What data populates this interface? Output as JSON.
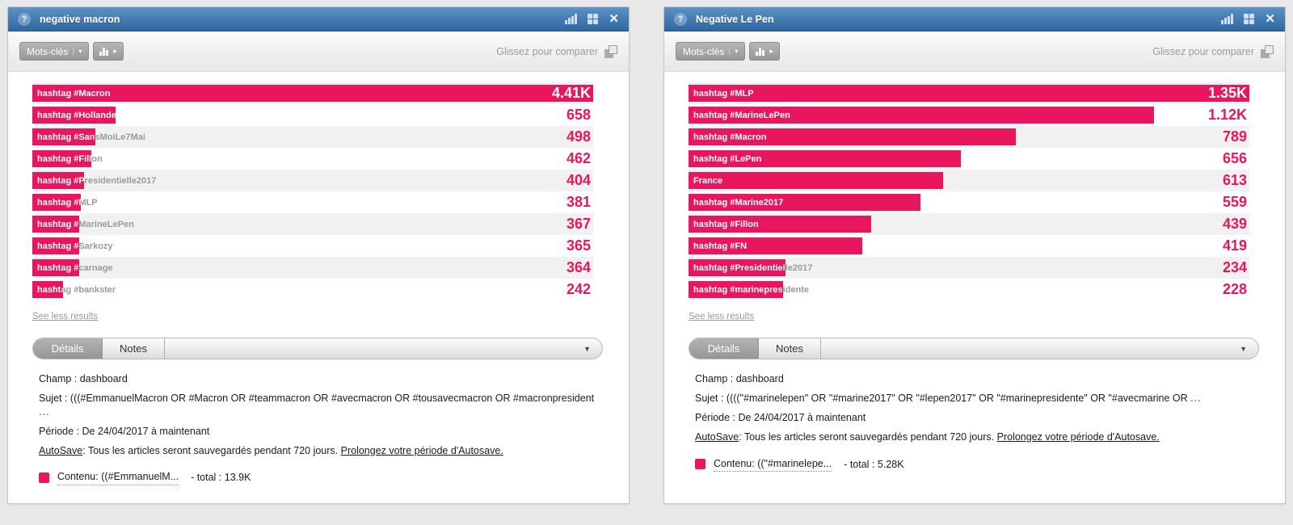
{
  "colors": {
    "accent": "#e8175d",
    "titlebar_top": "#5a93c6",
    "titlebar_bottom": "#30679f"
  },
  "icons": {
    "help": "?",
    "close": "✕",
    "caret_down": "▾",
    "caret_right": "▸",
    "caret_small": "▼"
  },
  "toolbar": {
    "keywords_button": "Mots-clés",
    "drag_hint": "Glissez pour comparer"
  },
  "tabs": {
    "details": "Détails",
    "notes": "Notes"
  },
  "see_less": "See less results",
  "chart_data": [
    {
      "type": "bar",
      "orientation": "horizontal",
      "title": "negative macron",
      "categories": [
        "hashtag #Macron",
        "hashtag #Hollande",
        "hashtag #SansMoiLe7Mai",
        "hashtag #Fillon",
        "hashtag #Presidentielle2017",
        "hashtag #MLP",
        "hashtag #MarineLePen",
        "hashtag #Sarkozy",
        "hashtag #carnage",
        "hashtag #bankster"
      ],
      "values": [
        4410,
        658,
        498,
        462,
        404,
        381,
        367,
        365,
        364,
        242
      ],
      "value_labels": [
        "4.41K",
        "658",
        "498",
        "462",
        "404",
        "381",
        "367",
        "365",
        "364",
        "242"
      ],
      "total": "13.9K"
    },
    {
      "type": "bar",
      "orientation": "horizontal",
      "title": "Negative Le Pen",
      "categories": [
        "hashtag #MLP",
        "hashtag #MarineLePen",
        "hashtag #Macron",
        "hashtag #LePen",
        "France",
        "hashtag #Marine2017",
        "hashtag #Fillon",
        "hashtag #FN",
        "hashtag #Presidentielle2017",
        "hashtag #marinepresidente"
      ],
      "values": [
        1350,
        1120,
        789,
        656,
        613,
        559,
        439,
        419,
        234,
        228
      ],
      "value_labels": [
        "1.35K",
        "1.12K",
        "789",
        "656",
        "613",
        "559",
        "439",
        "419",
        "234",
        "228"
      ],
      "total": "5.28K"
    }
  ],
  "panels": [
    {
      "title": "negative macron",
      "rows": [
        {
          "label": "hashtag #Macron",
          "value": "4.41K",
          "pct": 100
        },
        {
          "label": "hashtag #Hollande",
          "value": "658",
          "pct": 14.9
        },
        {
          "label": "hashtag #SansMoiLe7Mai",
          "value": "498",
          "pct": 11.3
        },
        {
          "label": "hashtag #Fillon",
          "value": "462",
          "pct": 10.5
        },
        {
          "label": "hashtag #Presidentielle2017",
          "value": "404",
          "pct": 9.2
        },
        {
          "label": "hashtag #MLP",
          "value": "381",
          "pct": 8.6
        },
        {
          "label": "hashtag #MarineLePen",
          "value": "367",
          "pct": 8.3
        },
        {
          "label": "hashtag #Sarkozy",
          "value": "365",
          "pct": 8.3
        },
        {
          "label": "hashtag #carnage",
          "value": "364",
          "pct": 8.3
        },
        {
          "label": "hashtag #bankster",
          "value": "242",
          "pct": 5.5
        }
      ],
      "details": {
        "champ": "Champ : dashboard",
        "sujet": "Sujet : (((#EmmanuelMacron OR #Macron OR #teammacron OR #avecmacron OR #tousavecmacron OR #macronpresident",
        "sujet_more": "...",
        "periode": "Période : De 24/04/2017 à maintenant",
        "autosave_label": "AutoSave",
        "autosave_text": ": Tous les articles seront sauvegardés pendant 720 jours. ",
        "autosave_link": "Prolongez votre période d'Autosave.",
        "legend_label": "Contenu: ((#EmmanuelM...",
        "legend_total": "- total : 13.9K"
      }
    },
    {
      "title": "Negative Le Pen",
      "rows": [
        {
          "label": "hashtag #MLP",
          "value": "1.35K",
          "pct": 100
        },
        {
          "label": "hashtag #MarineLePen",
          "value": "1.12K",
          "pct": 83
        },
        {
          "label": "hashtag #Macron",
          "value": "789",
          "pct": 58.4
        },
        {
          "label": "hashtag #LePen",
          "value": "656",
          "pct": 48.6
        },
        {
          "label": "France",
          "value": "613",
          "pct": 45.4
        },
        {
          "label": "hashtag #Marine2017",
          "value": "559",
          "pct": 41.4
        },
        {
          "label": "hashtag #Fillon",
          "value": "439",
          "pct": 32.5
        },
        {
          "label": "hashtag #FN",
          "value": "419",
          "pct": 31
        },
        {
          "label": "hashtag #Presidentielle2017",
          "value": "234",
          "pct": 17.3
        },
        {
          "label": "hashtag #marinepresidente",
          "value": "228",
          "pct": 16.9
        }
      ],
      "details": {
        "champ": "Champ : dashboard",
        "sujet": "Sujet : ((((\"#marinelepen\" OR \"#marine2017\" OR \"#lepen2017\" OR \"#marinepresidente\" OR \"#avecmarine OR",
        "sujet_more": "...",
        "periode": "Période : De 24/04/2017 à maintenant",
        "autosave_label": "AutoSave",
        "autosave_text": ": Tous les articles seront sauvegardés pendant 720 jours. ",
        "autosave_link": "Prolongez votre période d'Autosave.",
        "legend_label": "Contenu: ((\"#marinelepe...",
        "legend_total": "- total : 5.28K"
      }
    }
  ]
}
